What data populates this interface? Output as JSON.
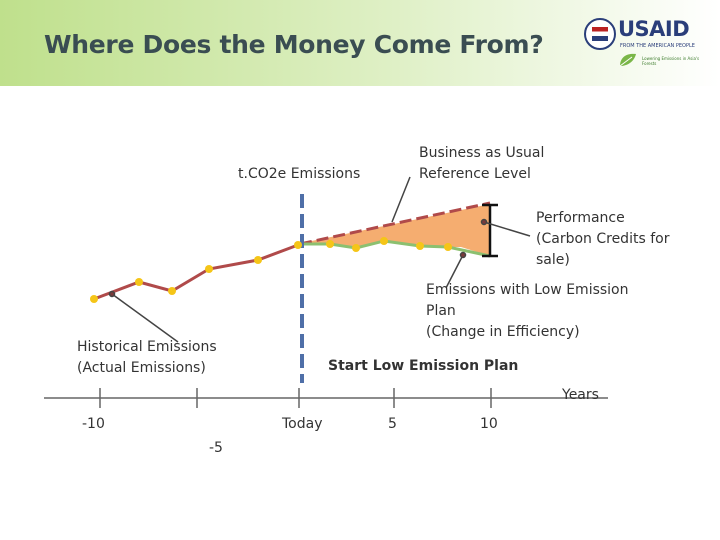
{
  "slide": {
    "title": "Where Does the Money Come From?",
    "logos": {
      "usaid": "USAID",
      "usaid_tagline": "FROM THE AMERICAN PEOPLE",
      "lead": "leaf",
      "lead_tagline": "Lowering Emissions in Asia's Forests"
    }
  },
  "labels": {
    "emissions": "t.CO2e Emissions",
    "bau": [
      "Business as Usual",
      "Reference Level"
    ],
    "performance": [
      "Performance",
      "(Carbon Credits for",
      "sale)"
    ],
    "low_emission": [
      "Emissions with Low Emission",
      "Plan",
      "(Change in Efficiency)"
    ],
    "historical": [
      "Historical Emissions",
      "(Actual Emissions)"
    ],
    "start_plan": "Start Low Emission Plan",
    "years": "Years"
  },
  "axis": {
    "ticks": [
      {
        "label": "-10",
        "year": -10,
        "row": "upper"
      },
      {
        "label": "-5",
        "year": -5,
        "row": "lower"
      },
      {
        "label": "Today",
        "year": 0,
        "row": "upper"
      },
      {
        "label": "5",
        "year": 5,
        "row": "upper"
      },
      {
        "label": "10",
        "year": 10,
        "row": "upper"
      }
    ]
  },
  "colors": {
    "historical_line": "#b04a4a",
    "bau_line": "#b04a4a",
    "low_emission_line": "#8cc070",
    "marker": "#f5c518",
    "performance_fill": "#f4a460",
    "start_line": "#4f6fa8",
    "axis": "#666666",
    "title": "#3a4d52"
  }
}
